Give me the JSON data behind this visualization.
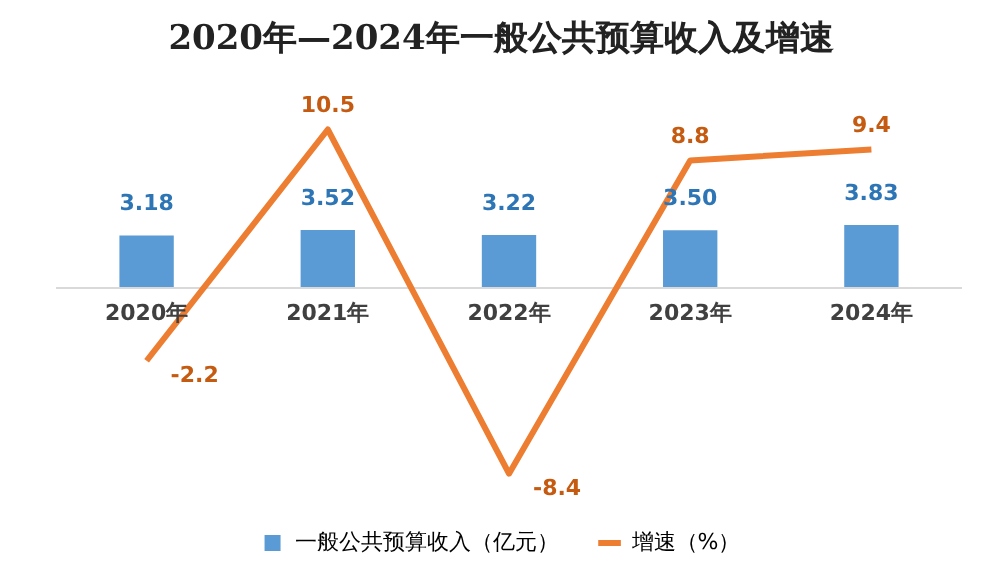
{
  "chart_data": {
    "type": "bar",
    "title": "2020年—2024年一般公共预算收入及增速",
    "categories": [
      "2020年",
      "2021年",
      "2022年",
      "2023年",
      "2024年"
    ],
    "series": [
      {
        "name": "一般公共预算收入（亿元）",
        "color": "#5b9bd5",
        "values": [
          3.18,
          3.52,
          3.22,
          3.5,
          3.83
        ],
        "value_labels": [
          "3.18",
          "3.52",
          "3.22",
          "3.50",
          "3.83"
        ]
      },
      {
        "name": "增速（%）",
        "type": "line",
        "axis": "y2",
        "color": "#ed7d31",
        "values": [
          -2.2,
          10.5,
          -8.4,
          8.8,
          9.4
        ]
      }
    ],
    "data_labels": true,
    "legend": "bottom",
    "grid": false,
    "marker": "none"
  }
}
